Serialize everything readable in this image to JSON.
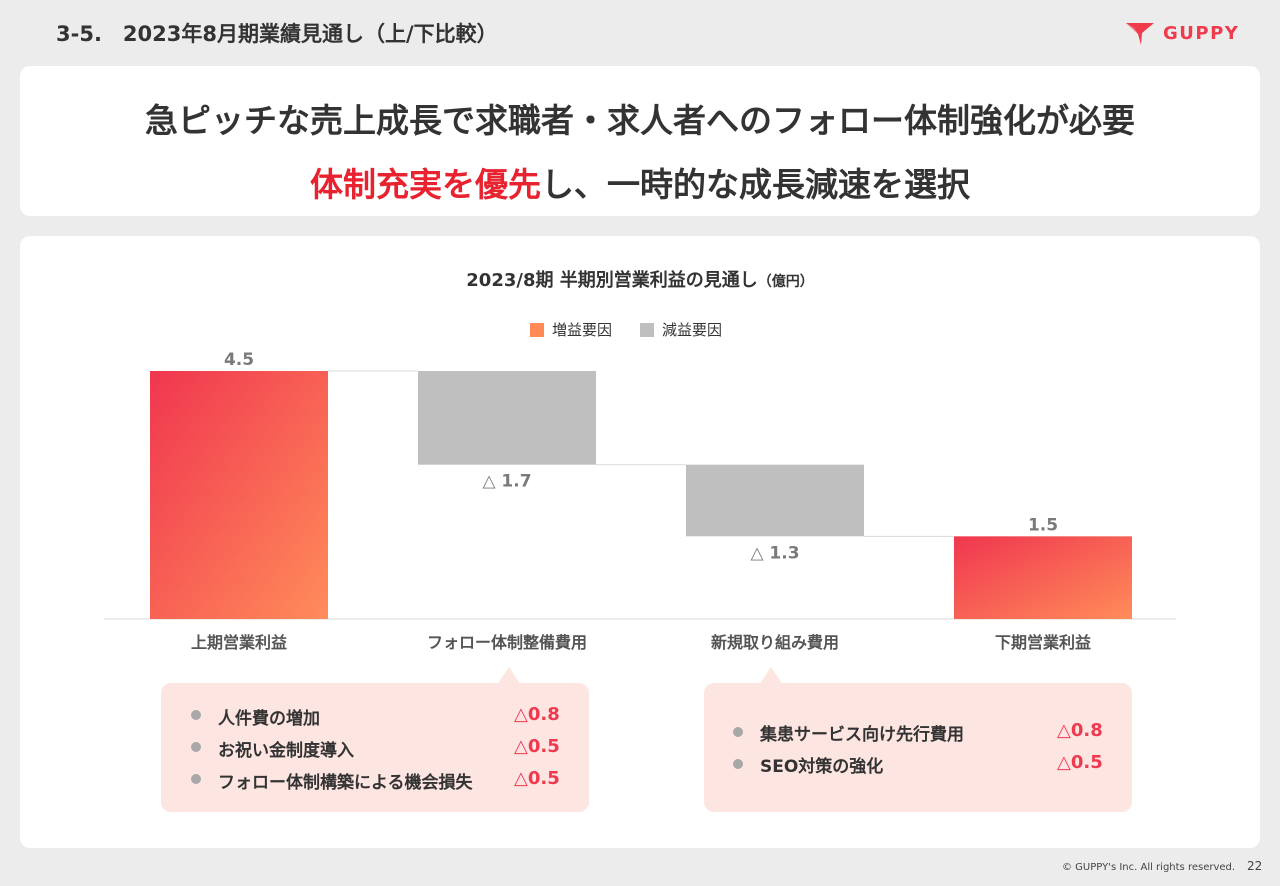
{
  "section_title": "3-5.　2023年8月期業績見通し（上/下比較）",
  "logo": {
    "text": "GUPPY",
    "color": "#f03b4d"
  },
  "headline": {
    "line1": "急ピッチな売上成長で求職者・求人者へのフォロー体制強化が必要",
    "line2_highlight": "体制充実を優先",
    "line2_rest": "し、一時的な成長減速を選択"
  },
  "chart_data": {
    "type": "bar",
    "subtype": "waterfall",
    "title": "2023/8期 半期別営業利益の見通し",
    "title_unit": "（億円）",
    "legend": [
      {
        "label": "増益要因",
        "color": "#ff8a55"
      },
      {
        "label": "減益要因",
        "color": "#bfbfbf"
      }
    ],
    "categories": [
      "上期営業利益",
      "フォロー体制整備費用",
      "新規取り組み費用",
      "下期営業利益"
    ],
    "values": [
      4.5,
      -1.7,
      -1.3,
      1.5
    ],
    "data_labels": [
      "4.5",
      "△ 1.7",
      "△ 1.3",
      "1.5"
    ],
    "ylim": [
      0,
      4.5
    ],
    "colors": {
      "increase_start": "#f0364f",
      "increase_end": "#ff8c5a",
      "decrease": "#bfbfbf"
    }
  },
  "callouts": [
    {
      "items": [
        {
          "label": "人件費の増加",
          "value": "△0.8"
        },
        {
          "label": "お祝い金制度導入",
          "value": "△0.5"
        },
        {
          "label": "フォロー体制構築による機会損失",
          "value": "△0.5"
        }
      ]
    },
    {
      "items": [
        {
          "label": "集患サービス向け先行費用",
          "value": "△0.8"
        },
        {
          "label": "SEO対策の強化",
          "value": "△0.5"
        }
      ]
    }
  ],
  "footer": {
    "copyright": "© GUPPY's Inc. All rights reserved.",
    "page": "22"
  }
}
